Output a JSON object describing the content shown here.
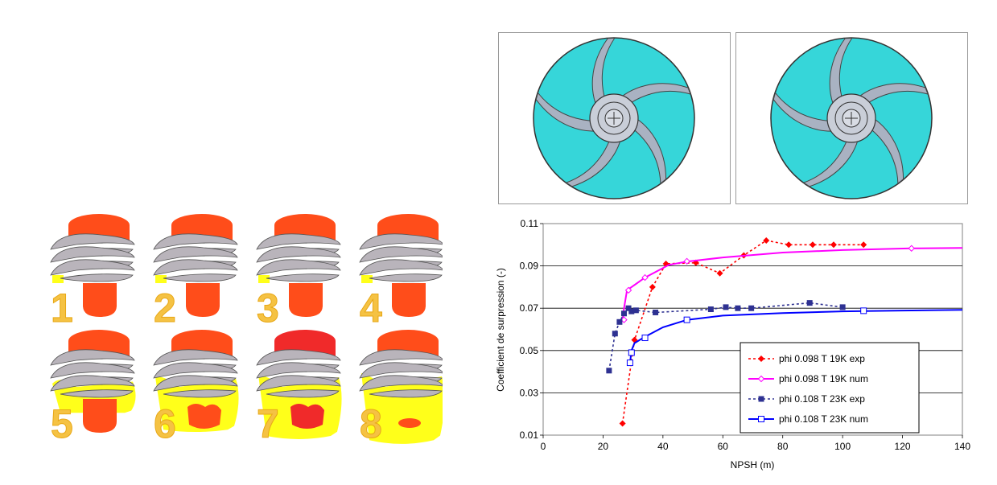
{
  "inducer_panels": {
    "labels": [
      "1",
      "2",
      "3",
      "4",
      "5",
      "6",
      "7",
      "8"
    ],
    "colors": {
      "body": "#ff4d1a",
      "body_hot": "#f02a2a",
      "blade": "#b9b4bb",
      "cavity": "#ffff1a",
      "label": "#f5c243"
    },
    "cavitation_levels": [
      0.05,
      0.1,
      0.15,
      0.15,
      0.35,
      0.75,
      0.9,
      1.0
    ]
  },
  "impeller_views": {
    "count": 2,
    "colors": {
      "fluid": "#36d6d9",
      "blade": "#a9b2c2",
      "hub": "#c9ced8",
      "frame": "#9a9a9a"
    }
  },
  "chart_data": {
    "type": "line",
    "title": "",
    "xlabel": "NPSH (m)",
    "ylabel": "Coefficient de surpression (-)",
    "xlim": [
      0,
      140
    ],
    "ylim": [
      0.01,
      0.11
    ],
    "xticks": [
      "0",
      "20",
      "40",
      "60",
      "80",
      "100",
      "120",
      "140"
    ],
    "yticks": [
      "0.01",
      "0.03",
      "0.05",
      "0.07",
      "0.09",
      "0.11"
    ],
    "grid": "horizontal",
    "legend_position": "bottom-right",
    "series": [
      {
        "name": "phi 0.098 T 19K exp",
        "color": "#ff0000",
        "style": "dotted",
        "marker": "diamond-filled",
        "x": [
          26.5,
          30.5,
          36.5,
          41,
          51,
          59,
          67,
          74.5,
          82,
          90,
          97,
          107
        ],
        "y": [
          0.0155,
          0.055,
          0.08,
          0.091,
          0.0915,
          0.0865,
          0.095,
          0.102,
          0.1,
          0.1,
          0.1,
          0.1
        ]
      },
      {
        "name": "phi 0.098 T 19K num",
        "color": "#ff00ff",
        "style": "solid",
        "marker": "diamond-open",
        "x": [
          26.5,
          27,
          28,
          31,
          34,
          38,
          42,
          48,
          60,
          80,
          100,
          123,
          140
        ],
        "y": [
          0.064,
          0.07,
          0.0785,
          0.0815,
          0.0845,
          0.0875,
          0.0905,
          0.092,
          0.094,
          0.0963,
          0.0975,
          0.0983,
          0.0985
        ],
        "marker_x": [
          27,
          28.5,
          34,
          48,
          123
        ],
        "marker_y": [
          0.0645,
          0.0785,
          0.0845,
          0.0922,
          0.0983
        ]
      },
      {
        "name": "phi 0.108 T 23K exp",
        "color": "#2e3192",
        "style": "dotted",
        "marker": "square-filled",
        "x": [
          22,
          24,
          25.5,
          27,
          28.5,
          29.5,
          31,
          37.5,
          56,
          61,
          65,
          69.5,
          89,
          100
        ],
        "y": [
          0.0405,
          0.058,
          0.0635,
          0.0675,
          0.07,
          0.0685,
          0.069,
          0.068,
          0.0695,
          0.0705,
          0.07,
          0.07,
          0.0725,
          0.0705
        ]
      },
      {
        "name": "phi 0.108 T 23K num",
        "color": "#0000ff",
        "style": "solid",
        "marker": "square-open",
        "x": [
          29,
          29.5,
          30.5,
          34,
          40,
          48,
          60,
          80,
          100,
          120,
          140
        ],
        "y": [
          0.044,
          0.05,
          0.0535,
          0.0565,
          0.061,
          0.0645,
          0.0665,
          0.0677,
          0.0685,
          0.0689,
          0.0692
        ],
        "marker_x": [
          29,
          29.5,
          34,
          48,
          107
        ],
        "marker_y": [
          0.0442,
          0.049,
          0.056,
          0.0645,
          0.0688
        ]
      }
    ]
  }
}
